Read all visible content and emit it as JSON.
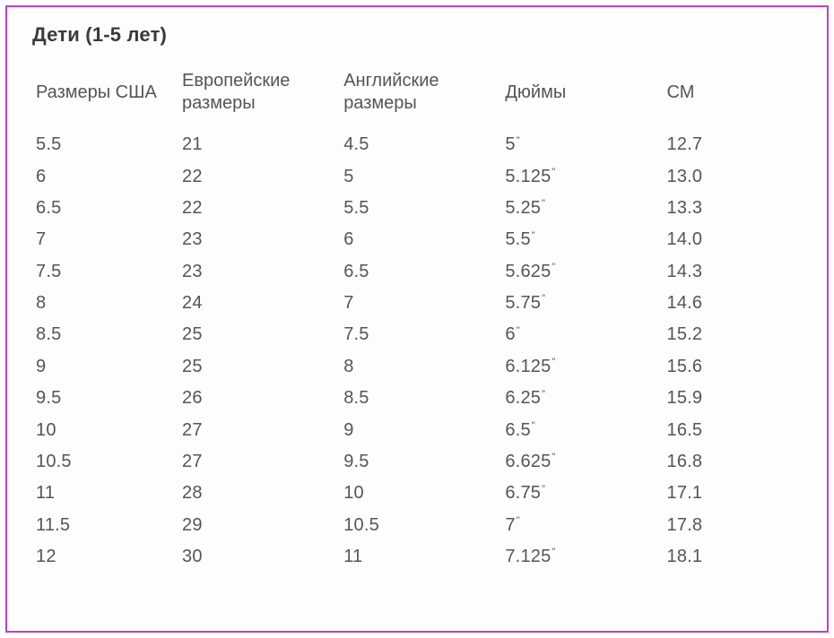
{
  "title": "Дети (1-5 лет)",
  "table": {
    "type": "table",
    "background_color": "#fdfdfd",
    "border_color": "#c040c0",
    "text_color": "#555555",
    "title_color": "#3a3a3a",
    "font_family": "Verdana",
    "header_fontsize": 20,
    "cell_fontsize": 20,
    "title_fontsize": 22,
    "column_widths_pct": [
      19,
      21,
      21,
      21,
      18
    ],
    "columns": [
      "Размеры США",
      "Европейские размеры",
      "Английские размеры",
      "Дюймы",
      "СМ"
    ],
    "inch_suffix": "\"",
    "rows": [
      {
        "us": "5.5",
        "eu": "21",
        "uk": "4.5",
        "inches": "5",
        "cm": "12.7"
      },
      {
        "us": "6",
        "eu": "22",
        "uk": "5",
        "inches": "5.125",
        "cm": "13.0"
      },
      {
        "us": "6.5",
        "eu": "22",
        "uk": "5.5",
        "inches": "5.25",
        "cm": "13.3"
      },
      {
        "us": "7",
        "eu": "23",
        "uk": "6",
        "inches": "5.5",
        "cm": "14.0"
      },
      {
        "us": "7.5",
        "eu": "23",
        "uk": "6.5",
        "inches": "5.625",
        "cm": "14.3"
      },
      {
        "us": "8",
        "eu": "24",
        "uk": "7",
        "inches": "5.75",
        "cm": "14.6"
      },
      {
        "us": "8.5",
        "eu": "25",
        "uk": "7.5",
        "inches": "6",
        "cm": "15.2"
      },
      {
        "us": "9",
        "eu": "25",
        "uk": "8",
        "inches": "6.125",
        "cm": "15.6"
      },
      {
        "us": "9.5",
        "eu": "26",
        "uk": "8.5",
        "inches": "6.25",
        "cm": "15.9"
      },
      {
        "us": "10",
        "eu": "27",
        "uk": "9",
        "inches": "6.5",
        "cm": "16.5"
      },
      {
        "us": "10.5",
        "eu": "27",
        "uk": "9.5",
        "inches": "6.625",
        "cm": "16.8"
      },
      {
        "us": "11",
        "eu": "28",
        "uk": "10",
        "inches": "6.75",
        "cm": "17.1"
      },
      {
        "us": "11.5",
        "eu": "29",
        "uk": "10.5",
        "inches": "7",
        "cm": "17.8"
      },
      {
        "us": "12",
        "eu": "30",
        "uk": "11",
        "inches": "7.125",
        "cm": "18.1"
      }
    ]
  }
}
